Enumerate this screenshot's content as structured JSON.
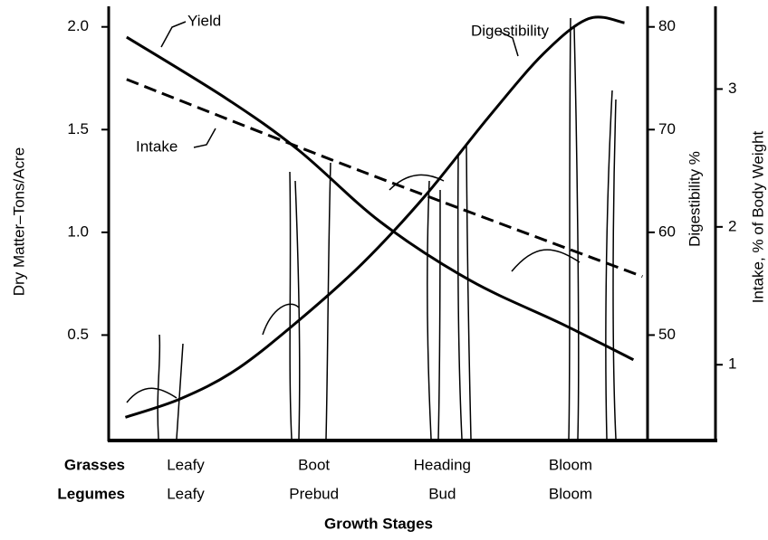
{
  "chart_data": {
    "type": "line",
    "y_label": "Dry Matter–Tons/Acre",
    "y2_label": "Digestibility %",
    "y3_label": "Intake, % of Body Weight",
    "x_label": "Growth Stages",
    "x_rows": [
      {
        "name": "Grasses",
        "labels": [
          "Leafy",
          "Boot",
          "Heading",
          "Bloom"
        ]
      },
      {
        "name": "Legumes",
        "labels": [
          "Leafy",
          "Prebud",
          "Bud",
          "Bloom"
        ]
      }
    ],
    "x_positions": [
      1,
      2,
      3,
      4
    ],
    "xlim": [
      0.4,
      4.6
    ],
    "ylim": [
      0,
      2.1
    ],
    "yticks": [
      {
        "value": 0.5,
        "label": "0.5"
      },
      {
        "value": 1,
        "label": "1.0"
      },
      {
        "value": 1.5,
        "label": "1.5"
      },
      {
        "value": 2,
        "label": "2.0"
      }
    ],
    "y2lim": [
      40,
      82
    ],
    "y2ticks": [
      50,
      60,
      70,
      80
    ],
    "y3lim": [
      0.47,
      3.6
    ],
    "y3ticks": [
      1,
      2,
      3
    ],
    "series": [
      {
        "name": "Yield",
        "axis": "y",
        "dash": false,
        "x": [
          0.53,
          0.96,
          1.39,
          1.88,
          2.38,
          2.87,
          3.36,
          3.79,
          4.14,
          4.42
        ],
        "values": [
          0.1,
          0.19,
          0.33,
          0.57,
          0.85,
          1.18,
          1.56,
          1.87,
          2.04,
          2.02
        ]
      },
      {
        "name": "Digestibility",
        "axis": "y2",
        "dash": false,
        "x": [
          0.54,
          1.32,
          1.88,
          2.52,
          3.22,
          3.93,
          4.49
        ],
        "values": [
          79,
          73,
          68,
          61,
          55.3,
          51.1,
          47.6
        ]
      },
      {
        "name": "Intake",
        "axis": "y3",
        "dash": true,
        "x": [
          0.54,
          2.38,
          4.56
        ],
        "values": [
          3.07,
          2.4,
          1.64
        ]
      }
    ]
  }
}
